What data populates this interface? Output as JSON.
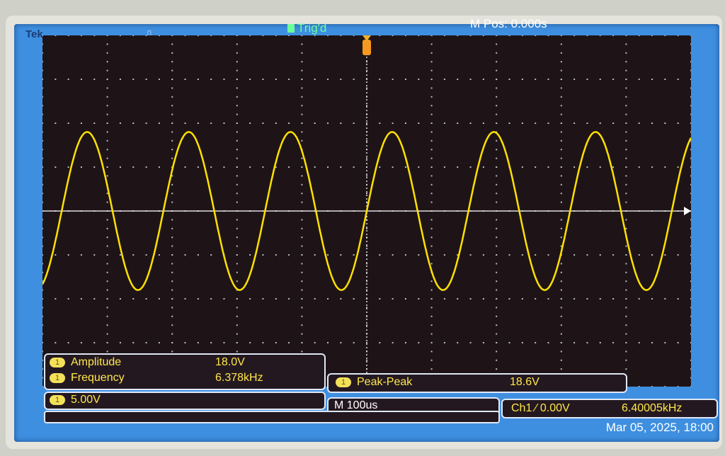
{
  "header": {
    "brand": "Tek",
    "trigger_status": "Trig'd",
    "m_pos": "M Pos: 0.000s",
    "pulse_icon": "pulse-icon"
  },
  "measurements": {
    "amplitude_label": "Amplitude",
    "amplitude_value": "18.0V",
    "frequency_label": "Frequency",
    "frequency_value": "6.378kHz",
    "peak_label": "Peak-Peak",
    "peak_value": "18.6V",
    "channel_badge": "1"
  },
  "status": {
    "ch1_scale": "5.00V",
    "timebase": "M 100us",
    "trigger": "Ch1 ⁄ 0.00V",
    "trigger_freq": "6.40005kHz",
    "datetime": "Mar 05, 2025, 18:00"
  },
  "colors": {
    "trace": "#ffe000",
    "screen": "#3f8fe0",
    "grid_bg": "#1e1418"
  },
  "chart_data": {
    "type": "line",
    "xlabel": "",
    "ylabel": "",
    "x_unit": "us",
    "y_unit": "V",
    "xlim": [
      -500,
      500
    ],
    "ylim": [
      -20,
      20
    ],
    "x_divisions": 10,
    "y_divisions": 8,
    "grid": true,
    "series": [
      {
        "waveform": "sine",
        "amplitude": 9.0,
        "frequency_hz": 6378,
        "offset": 0,
        "trigger_level": 0
      }
    ]
  }
}
